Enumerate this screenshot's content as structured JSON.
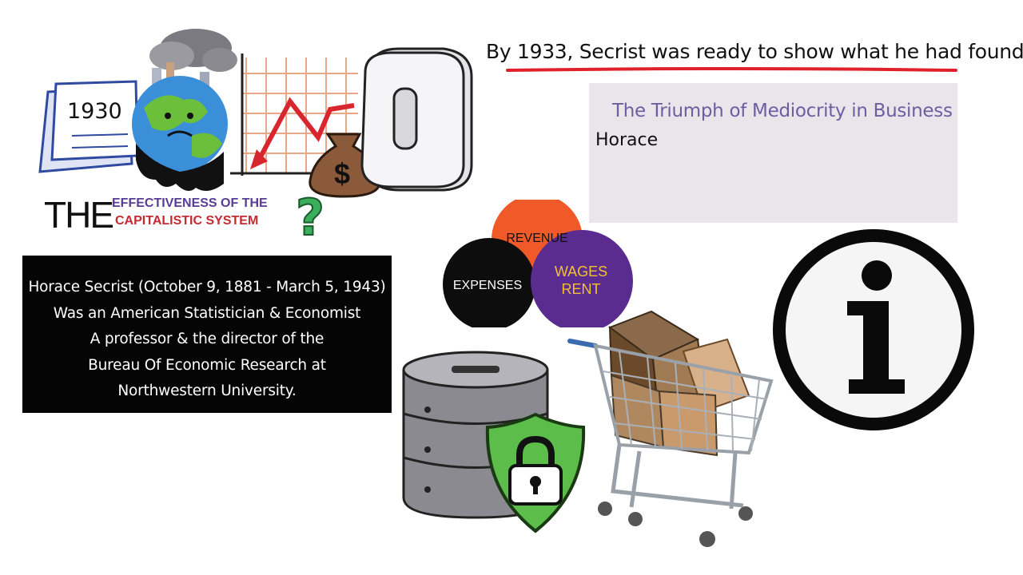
{
  "headline": "By 1933, Secrist was ready to show what he had found",
  "book": {
    "title": "The Triumph of Mediocrity in Business",
    "author": "Horace"
  },
  "bio": {
    "lines": [
      "Horace Secrist (October 9, 1881 - March 5, 1943)",
      "Was an American Statistician & Economist",
      "A professor & the director of the",
      "Bureau Of Economic Research at",
      "Northwestern University."
    ]
  },
  "calendar": {
    "year": "1930"
  },
  "effectiveness": {
    "the": "THE",
    "line1": "EFFECTIVENESS OF THE",
    "line2": "CAPITALISTIC SYSTEM",
    "question_mark": "?"
  },
  "chart_illustration": {
    "zero": "0",
    "dollar": "$"
  },
  "venn": {
    "revenue": "REVENUE",
    "expenses": "EXPENSES",
    "wages": "WAGES",
    "rent": "RENT"
  },
  "colors": {
    "underline": "#e0202a",
    "revenue": "#f05a28",
    "expenses": "#0d0d0d",
    "wages_rent": "#5b2c8f",
    "wages_text": "#f2c12e",
    "shield": "#5cbd4a",
    "card_bg": "#e8e6ea",
    "title_purple": "#6a5fa0"
  },
  "icons": [
    "calendar-icon",
    "earth-icon",
    "declining-chart-icon",
    "money-bag-icon",
    "zero-block-icon",
    "question-mark-icon",
    "database-icon",
    "padlock-shield-icon",
    "shopping-cart-icon",
    "info-icon"
  ]
}
